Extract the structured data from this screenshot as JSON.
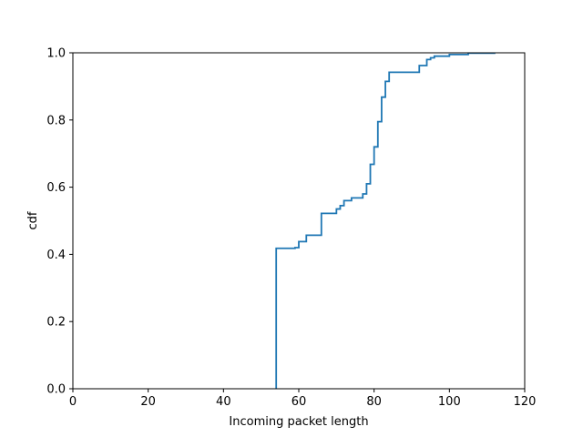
{
  "chart_data": {
    "type": "line",
    "title": "",
    "xlabel": "Incoming packet length",
    "ylabel": "cdf",
    "xlim": [
      0,
      120
    ],
    "ylim": [
      0,
      1.0
    ],
    "xticks": [
      0,
      20,
      40,
      60,
      80,
      100,
      120
    ],
    "xtick_labels": [
      "0",
      "20",
      "40",
      "60",
      "80",
      "100",
      "120"
    ],
    "yticks": [
      0.0,
      0.2,
      0.4,
      0.6,
      0.8,
      1.0
    ],
    "ytick_labels": [
      "0.0",
      "0.2",
      "0.4",
      "0.6",
      "0.8",
      "1.0"
    ],
    "grid": false,
    "legend": "none",
    "series": [
      {
        "color": "#1f77b4",
        "step": true,
        "x": [
          54,
          54,
          59,
          60,
          62,
          66,
          70,
          71,
          72,
          74,
          77,
          78,
          79,
          80,
          81,
          82,
          83,
          84,
          92,
          94,
          95,
          96,
          100,
          105,
          112
        ],
        "y": [
          0.0,
          0.418,
          0.42,
          0.438,
          0.457,
          0.522,
          0.535,
          0.545,
          0.56,
          0.568,
          0.58,
          0.61,
          0.668,
          0.72,
          0.795,
          0.868,
          0.915,
          0.942,
          0.962,
          0.98,
          0.985,
          0.99,
          0.995,
          0.999,
          1.0
        ]
      }
    ]
  }
}
